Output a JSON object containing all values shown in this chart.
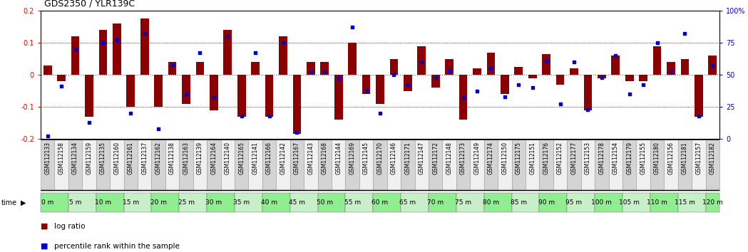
{
  "title": "GDS2350 / YLR139C",
  "samples": [
    "GSM112133",
    "GSM112158",
    "GSM112134",
    "GSM112159",
    "GSM112135",
    "GSM112160",
    "GSM112161",
    "GSM112137",
    "GSM112162",
    "GSM112138",
    "GSM112163",
    "GSM112139",
    "GSM112164",
    "GSM112140",
    "GSM112165",
    "GSM112141",
    "GSM112166",
    "GSM112142",
    "GSM112167",
    "GSM112143",
    "GSM112168",
    "GSM112144",
    "GSM112169",
    "GSM112145",
    "GSM112170",
    "GSM112146",
    "GSM112171",
    "GSM112147",
    "GSM112172",
    "GSM112148",
    "GSM112173",
    "GSM112149",
    "GSM112174",
    "GSM112150",
    "GSM112175",
    "GSM112151",
    "GSM112176",
    "GSM112152",
    "GSM112177",
    "GSM112153",
    "GSM112178",
    "GSM112154",
    "GSM112179",
    "GSM112155",
    "GSM112180",
    "GSM112156",
    "GSM112181",
    "GSM112157",
    "GSM112182"
  ],
  "time_labels": [
    "0 m",
    "5 m",
    "10 m",
    "15 m",
    "20 m",
    "25 m",
    "30 m",
    "35 m",
    "40 m",
    "45 m",
    "50 m",
    "55 m",
    "60 m",
    "65 m",
    "70 m",
    "75 m",
    "80 m",
    "85 m",
    "90 m",
    "95 m",
    "100 m",
    "105 m",
    "110 m",
    "115 m",
    "120 m"
  ],
  "log_ratio": [
    0.03,
    -0.02,
    0.12,
    -0.13,
    0.14,
    0.16,
    -0.1,
    0.175,
    -0.1,
    0.04,
    -0.09,
    0.04,
    -0.11,
    0.14,
    -0.13,
    0.04,
    -0.13,
    0.12,
    -0.185,
    0.04,
    0.04,
    -0.14,
    0.1,
    -0.06,
    -0.09,
    0.05,
    -0.05,
    0.09,
    -0.04,
    0.05,
    -0.14,
    0.02,
    0.07,
    -0.06,
    0.025,
    -0.01,
    0.065,
    -0.03,
    0.02,
    -0.11,
    -0.01,
    0.06,
    -0.02,
    -0.02,
    0.09,
    0.04,
    0.05,
    -0.13,
    0.06
  ],
  "percentile": [
    0.025,
    0.41,
    0.7,
    0.13,
    0.75,
    0.77,
    0.2,
    0.82,
    0.08,
    0.58,
    0.35,
    0.67,
    0.32,
    0.8,
    0.18,
    0.67,
    0.18,
    0.75,
    0.05,
    0.52,
    0.52,
    0.47,
    0.87,
    0.38,
    0.2,
    0.5,
    0.42,
    0.6,
    0.48,
    0.53,
    0.32,
    0.37,
    0.55,
    0.33,
    0.42,
    0.4,
    0.61,
    0.27,
    0.6,
    0.23,
    0.48,
    0.65,
    0.35,
    0.42,
    0.75,
    0.52,
    0.82,
    0.18,
    0.57
  ],
  "bar_color": "#8B0000",
  "dot_color": "#0000CC",
  "ylim": [
    -0.2,
    0.2
  ],
  "yticks_left": [
    -0.2,
    -0.1,
    0.0,
    0.1,
    0.2
  ],
  "yticks_right": [
    0,
    25,
    50,
    75,
    100
  ],
  "time_bg_color": "#90EE90",
  "time_bg_color2": "#c8f0c8",
  "sep_color": "#888888",
  "label_bg_even": "#d4d4d4",
  "label_bg_odd": "#f0f0f0",
  "title_fontsize": 9,
  "tick_fontsize": 7,
  "sample_fontsize": 5.5,
  "time_fontsize": 6.5,
  "legend_fontsize": 7.5
}
